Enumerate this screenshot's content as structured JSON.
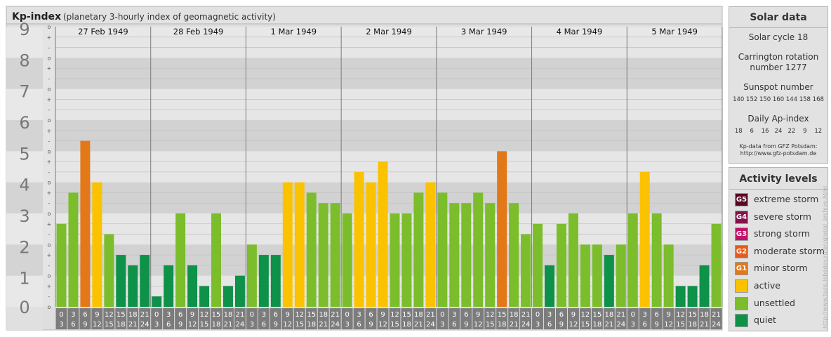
{
  "chart_data": {
    "type": "bar",
    "title": "Kp-index",
    "subtitle": "(planetary 3-hourly index of geomagnetic activity)",
    "ylim": [
      0,
      9
    ],
    "y_tick_labels": [
      "0",
      "1",
      "2",
      "3",
      "4",
      "5",
      "6",
      "7",
      "8",
      "9"
    ],
    "minor_tick_labels": [
      "+",
      "o",
      "-"
    ],
    "days": [
      "27 Feb 1949",
      "28 Feb 1949",
      "1 Mar 1949",
      "2 Mar 1949",
      "3 Mar 1949",
      "4 Mar 1949",
      "5 Mar 1949"
    ],
    "interval_starts": [
      "0",
      "3",
      "6",
      "9",
      "12",
      "15",
      "18",
      "21"
    ],
    "interval_ends": [
      "3",
      "6",
      "9",
      "12",
      "15",
      "18",
      "21",
      "24"
    ],
    "values": [
      [
        2.667,
        3.667,
        5.333,
        4.0,
        2.333,
        1.667,
        1.333,
        1.667
      ],
      [
        0.333,
        1.333,
        3.0,
        1.333,
        0.667,
        3.0,
        0.667,
        1.0
      ],
      [
        2.0,
        1.667,
        1.667,
        4.0,
        4.0,
        3.667,
        3.333,
        3.333
      ],
      [
        3.0,
        4.333,
        4.0,
        4.667,
        3.0,
        3.0,
        3.667,
        4.0
      ],
      [
        3.667,
        3.333,
        3.333,
        3.667,
        3.333,
        5.0,
        3.333,
        2.333
      ],
      [
        2.667,
        1.333,
        2.667,
        3.0,
        2.0,
        2.0,
        1.667,
        2.0
      ],
      [
        3.0,
        4.333,
        3.0,
        2.0,
        0.667,
        0.667,
        1.333,
        2.667
      ]
    ],
    "colors": {
      "quiet": "#0e9148",
      "unsettled": "#7bbd2b",
      "active": "#fbc200",
      "G1": "#e27818",
      "G2": "#e25c1e",
      "G3": "#c2126a",
      "G4": "#86124a",
      "G5": "#560822"
    },
    "grid": true,
    "legend": "right"
  },
  "solar_panel": {
    "title": "Solar data",
    "solar_cycle": "Solar cycle 18",
    "carrington_line1": "Carrington rotation",
    "carrington_line2": "number 1277",
    "sunspot_title": "Sunspot number",
    "sunspot_values": "140 152 150 160 144 158 168",
    "ap_title": "Daily Ap-index",
    "ap_values": "18    6    16   24   22    9    12",
    "source_line1": "Kp-data from GFZ Potsdam:",
    "source_line2": "http://www.gfz-potsdam.de"
  },
  "legend_panel": {
    "title": "Activity levels",
    "items": [
      {
        "code": "G5",
        "label": "extreme storm",
        "color": "#560822"
      },
      {
        "code": "G4",
        "label": "severe storm",
        "color": "#86124a"
      },
      {
        "code": "G3",
        "label": "strong storm",
        "color": "#c2126a"
      },
      {
        "code": "G2",
        "label": "moderate storm",
        "color": "#e25c1e"
      },
      {
        "code": "G1",
        "label": "minor storm",
        "color": "#e27818"
      },
      {
        "code": "",
        "label": "active",
        "color": "#fbc200"
      },
      {
        "code": "",
        "label": "unsettled",
        "color": "#7bbd2b"
      },
      {
        "code": "",
        "label": "quiet",
        "color": "#0e9148"
      }
    ]
  },
  "watermark": "http://www.tesis.lebedev.ru/en/global_archive.html"
}
